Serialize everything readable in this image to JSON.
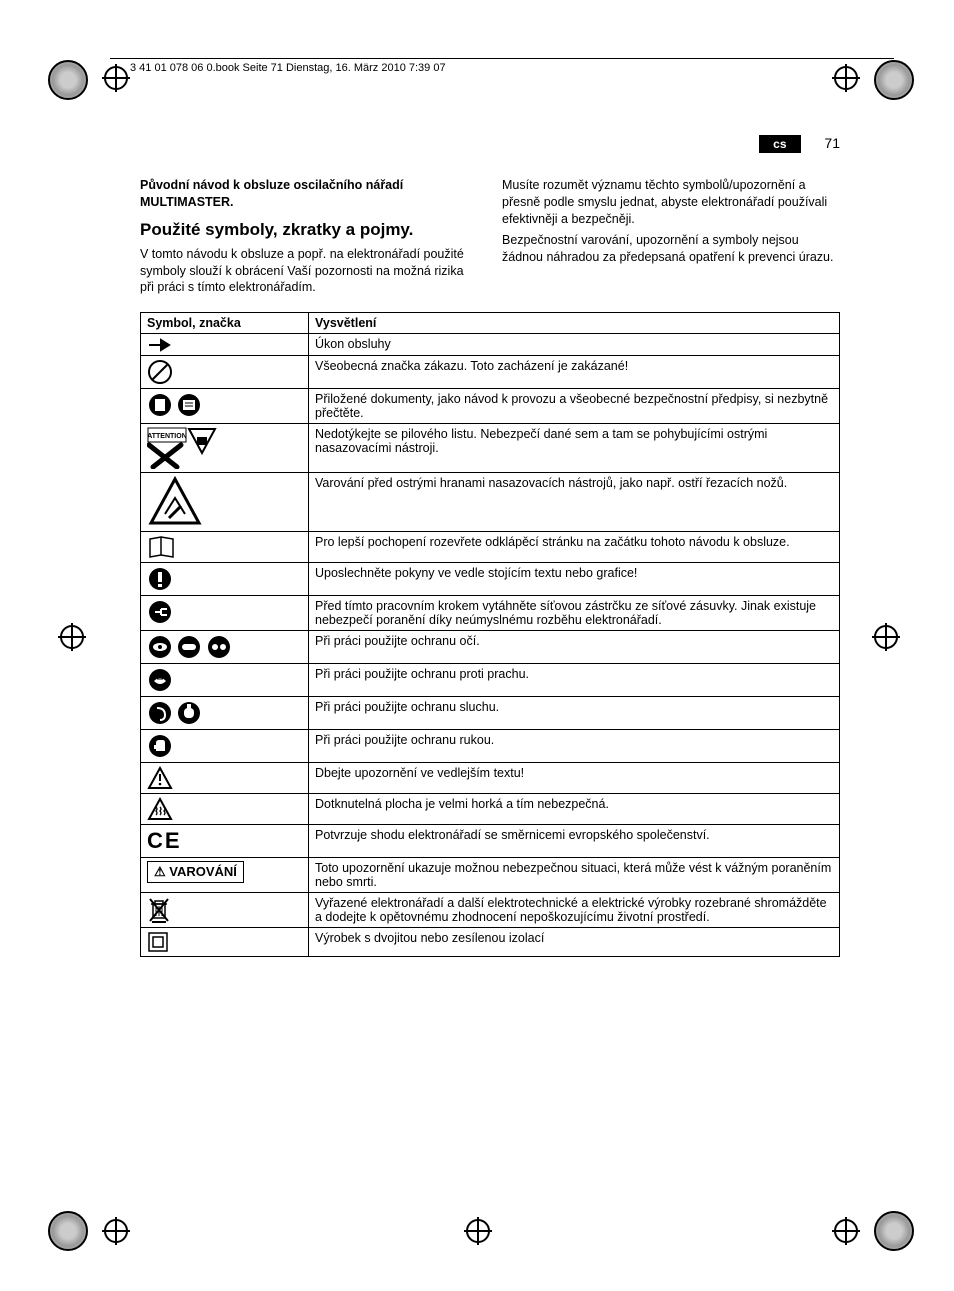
{
  "header": "3 41 01 078 06 0.book  Seite 71  Dienstag, 16. März 2010  7:39 07",
  "lang_badge": "cs",
  "page_number": "71",
  "intro_bold": "Původní návod k obsluze oscilačního nářadí MULTIMASTER.",
  "heading": "Použité symboly, zkratky a pojmy.",
  "left_para": "V tomto návodu k obsluze a popř. na elektronářadí použité symboly slouží k obrácení Vaší pozornosti na možná rizika při práci s tímto elektronářadím.",
  "right_para1": "Musíte rozumět významu těchto symbolů/upozornění a přesně podle smyslu jednat, abyste elektronářadí používali efektivněji a bezpečněji.",
  "right_para2": "Bezpečnostní varování, upozornění a symboly nejsou žádnou náhradou za předepsaná opatření k prevenci úrazu.",
  "table": {
    "cols": [
      "Symbol, značka",
      "Vysvětlení"
    ],
    "rows": [
      {
        "sym": "arrow",
        "text": "Úkon obsluhy"
      },
      {
        "sym": "prohibit",
        "text": "Všeobecná značka zákazu. Toto zacházení je zakázané!"
      },
      {
        "sym": "readdocs",
        "text": "Přiložené dokumenty, jako návod k provozu a všeobecné bezpečnostní předpisy, si nezbytně přečtěte."
      },
      {
        "sym": "attention-blade",
        "text": "Nedotýkejte se pilového listu. Nebezpečí dané sem a tam se pohybujícími ostrými nasazovacími nástroji."
      },
      {
        "sym": "sharp-warn",
        "text": "Varování před ostrými hranami nasazovacích nástrojů, jako např. ostří řezacích nožů."
      },
      {
        "sym": "foldout",
        "text": "Pro lepší pochopení rozevřete odklápěcí stránku na začátku tohoto návodu k obsluze."
      },
      {
        "sym": "obey",
        "text": "Uposlechněte pokyny ve vedle stojícím textu nebo grafice!"
      },
      {
        "sym": "unplug",
        "text": "Před tímto pracovním krokem vytáhněte síťovou zástrčku ze síťové zásuvky. Jinak existuje nebezpečí poranění díky neúmyslnému rozběhu elektronářadí."
      },
      {
        "sym": "eye",
        "text": "Při práci použijte ochranu očí."
      },
      {
        "sym": "dustmask",
        "text": "Při práci použijte ochranu proti prachu."
      },
      {
        "sym": "ear",
        "text": "Při práci použijte ochranu sluchu."
      },
      {
        "sym": "gloves",
        "text": "Při práci použijte ochranu rukou."
      },
      {
        "sym": "triangle",
        "text": "Dbejte upozornění ve vedlejším textu!"
      },
      {
        "sym": "hot",
        "text": "Dotknutelná plocha je velmi horká a tím nebezpečná."
      },
      {
        "sym": "ce",
        "text": "Potvrzuje shodu elektronářadí se směrnicemi evropského společenství."
      },
      {
        "sym": "varovani",
        "label": "VAROVÁNÍ",
        "text": "Toto upozornění ukazuje možnou nebezpečnou situaci, která může vést k vážným poraněním nebo smrti."
      },
      {
        "sym": "weee",
        "text": "Vyřazené elektronářadí a další elektrotechnické a elektrické výrobky rozebrané shromážděte a dodejte k opětovnému zhodnocení nepoškozujícímu životní prostředí."
      },
      {
        "sym": "class2",
        "text": "Výrobek s dvojitou nebo zesílenou izolací"
      }
    ]
  },
  "colors": {
    "text": "#000000",
    "bg": "#ffffff",
    "border": "#000000"
  }
}
